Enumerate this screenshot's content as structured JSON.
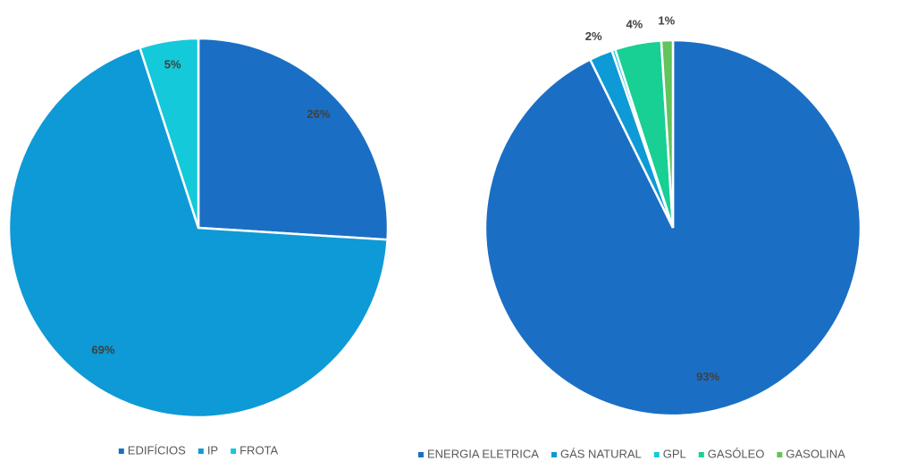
{
  "chart_data": [
    {
      "type": "pie",
      "categories": [
        "EDIFÍCIOS",
        "IP",
        "FROTA"
      ],
      "values": [
        26,
        69,
        5
      ],
      "value_labels": [
        "26%",
        "69%",
        "5%"
      ],
      "colors": [
        "#1a6fc4",
        "#0e9ad6",
        "#14c9d9"
      ],
      "legend": "bottom"
    },
    {
      "type": "pie",
      "categories": [
        "ENERGIA ELETRICA",
        "GÁS NATURAL",
        "GPL",
        "GASÓLEO",
        "GASOLINA"
      ],
      "values": [
        93,
        2,
        0.3,
        4,
        1
      ],
      "value_labels": [
        "93%",
        "2%",
        null,
        "4%",
        "1%"
      ],
      "colors": [
        "#1a6fc4",
        "#0e9ad6",
        "#14c9d9",
        "#18cf94",
        "#62c45c"
      ],
      "legend": "bottom"
    }
  ]
}
